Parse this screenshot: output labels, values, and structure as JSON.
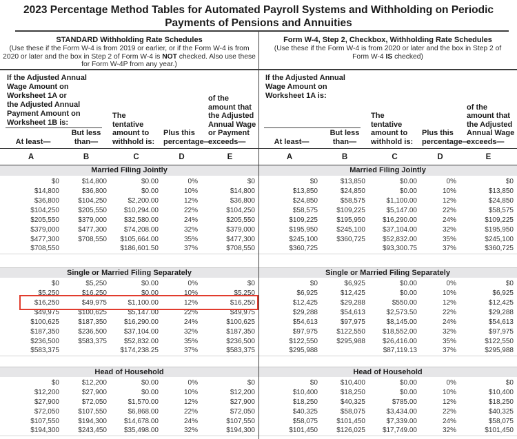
{
  "title": "2023 Percentage Method Tables for Automated Payroll Systems and Withholding on Periodic\nPayments of Pensions and Annuities",
  "letters": [
    "A",
    "B",
    "C",
    "D",
    "E"
  ],
  "colors": {
    "highlight_box": "#e13b2d",
    "section_bar": "#e6e6e8"
  },
  "left": {
    "heading": "STANDARD Withholding Rate Schedules",
    "desc_before": "(Use these if the Form W-4 is from 2019 or earlier, or if the Form W-4 is from 2020 or later and the box in Step 2 of Form W-4 is ",
    "desc_bold": "NOT",
    "desc_after": " checked. Also use these for Form W-4P from any year.)",
    "wage_note": "If the Adjusted Annual\nWage Amount on\nWorksheet 1A or\nthe Adjusted Annual\nPayment Amount on\nWorksheet 1B is:",
    "col_labels": {
      "a": "At least—",
      "b": "But less\nthan—",
      "c": "The\ntentative\namount to\nwithhold is:",
      "d": "Plus this\npercentage—",
      "e": "of the\namount that\nthe Adjusted\nAnnual Wage\nor Payment\nexceeds—"
    },
    "sections": [
      {
        "label": "Married Filing Jointly",
        "rows": [
          [
            "$0",
            "$14,800",
            "$0.00",
            "0%",
            "$0"
          ],
          [
            "$14,800",
            "$36,800",
            "$0.00",
            "10%",
            "$14,800"
          ],
          [
            "$36,800",
            "$104,250",
            "$2,200.00",
            "12%",
            "$36,800"
          ],
          [
            "$104,250",
            "$205,550",
            "$10,294.00",
            "22%",
            "$104,250"
          ],
          [
            "$205,550",
            "$379,000",
            "$32,580.00",
            "24%",
            "$205,550"
          ],
          [
            "$379,000",
            "$477,300",
            "$74,208.00",
            "32%",
            "$379,000"
          ],
          [
            "$477,300",
            "$708,550",
            "$105,664.00",
            "35%",
            "$477,300"
          ],
          [
            "$708,550",
            "",
            "$186,601.50",
            "37%",
            "$708,550"
          ]
        ]
      },
      {
        "label": "Single or Married Filing Separately",
        "rows": [
          [
            "$0",
            "$5,250",
            "$0.00",
            "0%",
            "$0"
          ],
          [
            "$5,250",
            "$16,250",
            "$0.00",
            "10%",
            "$5,250"
          ],
          [
            "$16,250",
            "$49,975",
            "$1,100.00",
            "12%",
            "$16,250"
          ],
          [
            "$49,975",
            "$100,625",
            "$5,147.00",
            "22%",
            "$49,975"
          ],
          [
            "$100,625",
            "$187,350",
            "$16,290.00",
            "24%",
            "$100,625"
          ],
          [
            "$187,350",
            "$236,500",
            "$37,104.00",
            "32%",
            "$187,350"
          ],
          [
            "$236,500",
            "$583,375",
            "$52,832.00",
            "35%",
            "$236,500"
          ],
          [
            "$583,375",
            "",
            "$174,238.25",
            "37%",
            "$583,375"
          ]
        ]
      },
      {
        "label": "Head of Household",
        "rows": [
          [
            "$0",
            "$12,200",
            "$0.00",
            "0%",
            "$0"
          ],
          [
            "$12,200",
            "$27,900",
            "$0.00",
            "10%",
            "$12,200"
          ],
          [
            "$27,900",
            "$72,050",
            "$1,570.00",
            "12%",
            "$27,900"
          ],
          [
            "$72,050",
            "$107,550",
            "$6,868.00",
            "22%",
            "$72,050"
          ],
          [
            "$107,550",
            "$194,300",
            "$14,678.00",
            "24%",
            "$107,550"
          ],
          [
            "$194,300",
            "$243,450",
            "$35,498.00",
            "32%",
            "$194,300"
          ]
        ]
      }
    ]
  },
  "right": {
    "heading": "Form W-4, Step 2, Checkbox, Withholding Rate Schedules",
    "desc_before": "(Use these if the Form W-4 is from 2020 or later and the box in Step 2 of Form W-4 ",
    "desc_bold": "IS",
    "desc_after": " checked)",
    "wage_note": "If the Adjusted Annual\nWage Amount on\nWorksheet 1A is:",
    "col_labels": {
      "a": "At least—",
      "b": "But less\nthan—",
      "c": "The\ntentative\namount to\nwithhold is:",
      "d": "Plus this\npercentage—",
      "e": "of the\namount that\nthe Adjusted\nAnnual Wage\nexceeds—"
    },
    "sections": [
      {
        "label": "Married Filing Jointly",
        "rows": [
          [
            "$0",
            "$13,850",
            "$0.00",
            "0%",
            "$0"
          ],
          [
            "$13,850",
            "$24,850",
            "$0.00",
            "10%",
            "$13,850"
          ],
          [
            "$24,850",
            "$58,575",
            "$1,100.00",
            "12%",
            "$24,850"
          ],
          [
            "$58,575",
            "$109,225",
            "$5,147.00",
            "22%",
            "$58,575"
          ],
          [
            "$109,225",
            "$195,950",
            "$16,290.00",
            "24%",
            "$109,225"
          ],
          [
            "$195,950",
            "$245,100",
            "$37,104.00",
            "32%",
            "$195,950"
          ],
          [
            "$245,100",
            "$360,725",
            "$52,832.00",
            "35%",
            "$245,100"
          ],
          [
            "$360,725",
            "",
            "$93,300.75",
            "37%",
            "$360,725"
          ]
        ]
      },
      {
        "label": "Single or Married Filing Separately",
        "rows": [
          [
            "$0",
            "$6,925",
            "$0.00",
            "0%",
            "$0"
          ],
          [
            "$6,925",
            "$12,425",
            "$0.00",
            "10%",
            "$6,925"
          ],
          [
            "$12,425",
            "$29,288",
            "$550.00",
            "12%",
            "$12,425"
          ],
          [
            "$29,288",
            "$54,613",
            "$2,573.50",
            "22%",
            "$29,288"
          ],
          [
            "$54,613",
            "$97,975",
            "$8,145.00",
            "24%",
            "$54,613"
          ],
          [
            "$97,975",
            "$122,550",
            "$18,552.00",
            "32%",
            "$97,975"
          ],
          [
            "$122,550",
            "$295,988",
            "$26,416.00",
            "35%",
            "$122,550"
          ],
          [
            "$295,988",
            "",
            "$87,119.13",
            "37%",
            "$295,988"
          ]
        ]
      },
      {
        "label": "Head of Household",
        "rows": [
          [
            "$0",
            "$10,400",
            "$0.00",
            "0%",
            "$0"
          ],
          [
            "$10,400",
            "$18,250",
            "$0.00",
            "10%",
            "$10,400"
          ],
          [
            "$18,250",
            "$40,325",
            "$785.00",
            "12%",
            "$18,250"
          ],
          [
            "$40,325",
            "$58,075",
            "$3,434.00",
            "22%",
            "$40,325"
          ],
          [
            "$58,075",
            "$101,450",
            "$7,339.00",
            "24%",
            "$58,075"
          ],
          [
            "$101,450",
            "$126,025",
            "$17,749.00",
            "32%",
            "$101,450"
          ]
        ]
      }
    ]
  },
  "highlight": {
    "panel": "left",
    "section": "Single or Married Filing Separately",
    "row": [
      "$16,250",
      "$49,975",
      "$1,100.00",
      "12%",
      "$16,250"
    ],
    "color": "#e13b2d"
  }
}
